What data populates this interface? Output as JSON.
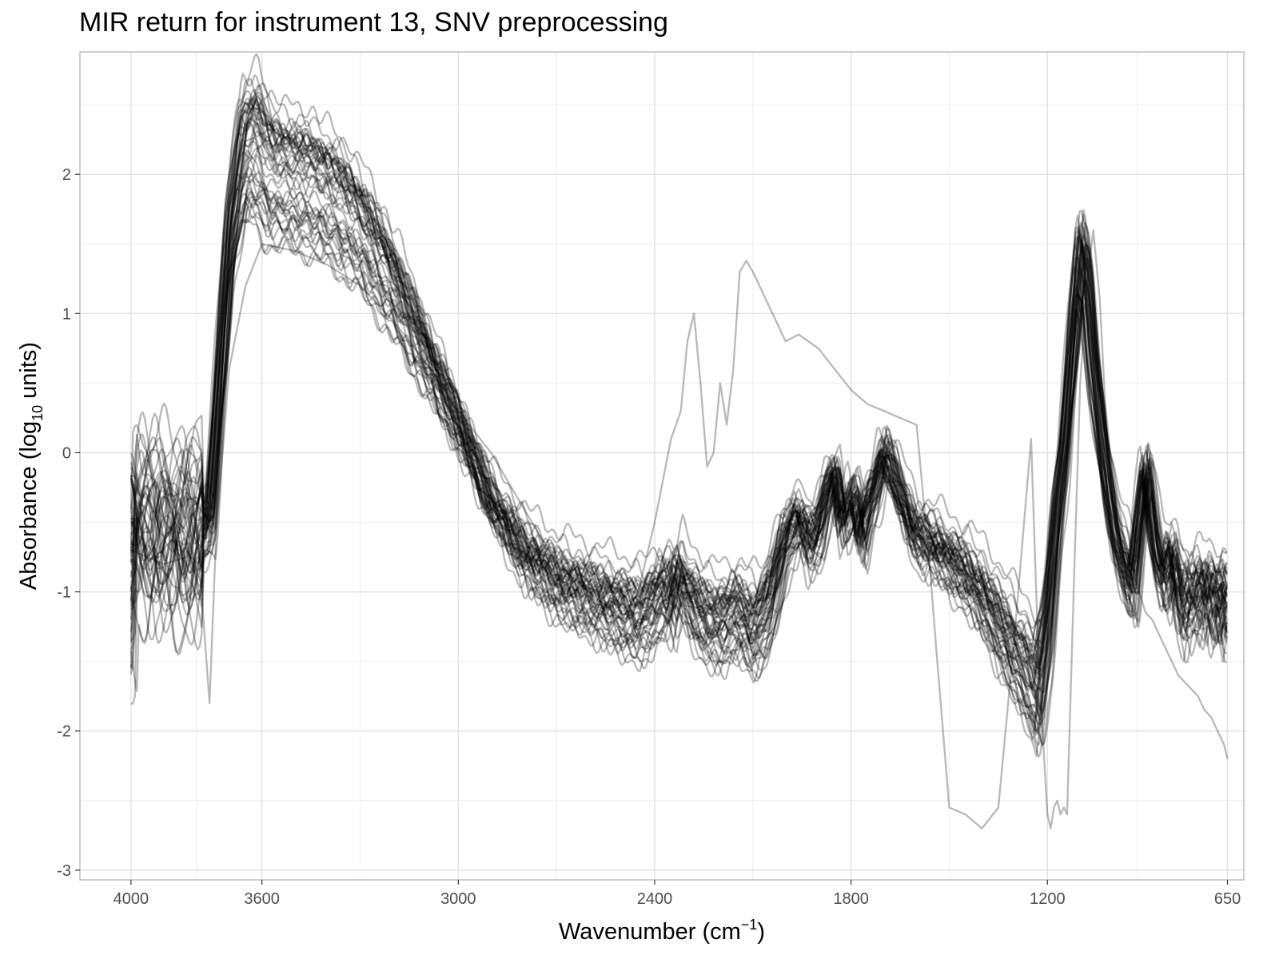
{
  "chart_data": {
    "type": "line",
    "title": "MIR return for instrument 13, SNV preprocessing",
    "xlabel": {
      "base": "Wavenumber (cm",
      "sup": "−1",
      "tail": ")"
    },
    "ylabel": {
      "base": "Absorbance (log",
      "sub": "10",
      "tail": " units)"
    },
    "x_reversed": true,
    "xlim": [
      4156,
      600
    ],
    "ylim": [
      -3.07,
      2.88
    ],
    "x_ticks": [
      4000,
      3600,
      3000,
      2400,
      1800,
      1200,
      650
    ],
    "x_tick_labels": [
      "4000",
      "3600",
      "3000",
      "2400",
      "1800",
      "1200",
      "650"
    ],
    "x_minor_gridlines": [
      3800,
      3300,
      2700,
      2100,
      1500,
      925
    ],
    "y_ticks": [
      2,
      1,
      0,
      -1,
      -2,
      -3
    ],
    "y_tick_labels": [
      "2",
      "1",
      "0",
      "-1",
      "-2",
      "-3"
    ],
    "y_minor_gridlines": [
      2.5,
      1.5,
      0.5,
      -0.5,
      -1.5,
      -2.5
    ],
    "grid": true,
    "legend": "none",
    "line_color": "#000000",
    "line_opacity": 0.28,
    "series_count": 50,
    "typical_series": {
      "x": [
        4000,
        3930,
        3870,
        3800,
        3760,
        3730,
        3700,
        3660,
        3620,
        3580,
        3520,
        3450,
        3380,
        3300,
        3200,
        3100,
        3000,
        2900,
        2800,
        2700,
        2600,
        2500,
        2450,
        2400,
        2370,
        2350,
        2330,
        2300,
        2250,
        2200,
        2150,
        2100,
        2050,
        2000,
        1960,
        1930,
        1900,
        1870,
        1850,
        1830,
        1810,
        1790,
        1770,
        1750,
        1720,
        1700,
        1680,
        1650,
        1620,
        1600,
        1580,
        1550,
        1500,
        1450,
        1400,
        1350,
        1300,
        1260,
        1230,
        1200,
        1170,
        1150,
        1120,
        1100,
        1080,
        1060,
        1040,
        1020,
        1000,
        980,
        960,
        940,
        920,
        900,
        880,
        860,
        840,
        820,
        800,
        780,
        760,
        740,
        720,
        700,
        680,
        660,
        650
      ],
      "y": [
        -0.5,
        -0.55,
        -0.6,
        -0.58,
        -0.5,
        0.5,
        1.5,
        2.1,
        2.2,
        2.0,
        1.95,
        1.9,
        1.8,
        1.6,
        1.2,
        0.7,
        0.2,
        -0.35,
        -0.7,
        -0.9,
        -1.0,
        -1.1,
        -1.15,
        -1.05,
        -0.95,
        -1.05,
        -0.85,
        -1.0,
        -1.15,
        -1.2,
        -1.1,
        -1.25,
        -1.05,
        -0.6,
        -0.45,
        -0.65,
        -0.55,
        -0.25,
        -0.15,
        -0.5,
        -0.4,
        -0.3,
        -0.6,
        -0.4,
        -0.2,
        0.0,
        -0.1,
        -0.3,
        -0.5,
        -0.6,
        -0.6,
        -0.65,
        -0.75,
        -0.85,
        -1.0,
        -1.2,
        -1.4,
        -1.55,
        -1.7,
        -1.2,
        -0.4,
        0.0,
        0.9,
        1.4,
        1.2,
        0.6,
        0.2,
        -0.2,
        -0.5,
        -0.7,
        -0.85,
        -0.95,
        -0.5,
        -0.1,
        -0.5,
        -0.8,
        -0.9,
        -0.7,
        -1.0,
        -1.1,
        -0.95,
        -1.05,
        -0.9,
        -1.1,
        -0.95,
        -1.15,
        -1.0
      ]
    },
    "outlier_series": {
      "x": [
        4000,
        3900,
        3830,
        3800,
        3760,
        3740,
        3700,
        3650,
        3600,
        3500,
        3400,
        3300,
        3200,
        3100,
        3000,
        2900,
        2800,
        2700,
        2600,
        2500,
        2450,
        2400,
        2350,
        2320,
        2300,
        2280,
        2260,
        2240,
        2220,
        2200,
        2180,
        2160,
        2140,
        2120,
        2100,
        2080,
        2060,
        2040,
        2000,
        1960,
        1900,
        1850,
        1800,
        1750,
        1700,
        1650,
        1600,
        1560,
        1540,
        1500,
        1450,
        1400,
        1350,
        1300,
        1250,
        1230,
        1210,
        1200,
        1190,
        1180,
        1170,
        1160,
        1150,
        1140,
        1120,
        1100,
        1080,
        1060,
        1040,
        1020,
        1000,
        980,
        960,
        940,
        920,
        900,
        880,
        860,
        840,
        820,
        800,
        780,
        760,
        740,
        720,
        700,
        680,
        660,
        650
      ],
      "y": [
        -0.7,
        -0.8,
        -0.75,
        -0.5,
        -1.8,
        -0.6,
        0.6,
        1.2,
        1.5,
        1.45,
        1.35,
        1.2,
        0.95,
        0.65,
        0.3,
        0.0,
        -0.4,
        -0.8,
        -1.0,
        -1.2,
        -1.0,
        -0.5,
        0.1,
        0.3,
        0.8,
        1.0,
        0.5,
        -0.1,
        0.0,
        0.5,
        0.2,
        0.6,
        1.3,
        1.38,
        1.3,
        1.2,
        1.1,
        1.0,
        0.8,
        0.85,
        0.75,
        0.6,
        0.45,
        0.35,
        0.3,
        0.25,
        0.2,
        -0.8,
        -1.4,
        -2.55,
        -2.6,
        -2.7,
        -2.55,
        -1.3,
        0.1,
        -1.3,
        -2.2,
        -2.6,
        -2.7,
        -2.55,
        -2.5,
        -2.6,
        -2.55,
        -2.6,
        -1.0,
        0.5,
        1.2,
        1.6,
        1.1,
        0.2,
        -0.2,
        -0.6,
        -0.9,
        -1.0,
        -1.0,
        -1.15,
        -1.2,
        -1.3,
        -1.4,
        -1.5,
        -1.6,
        -1.65,
        -1.7,
        -1.75,
        -1.85,
        -1.9,
        -2.0,
        -2.1,
        -2.2
      ]
    }
  }
}
